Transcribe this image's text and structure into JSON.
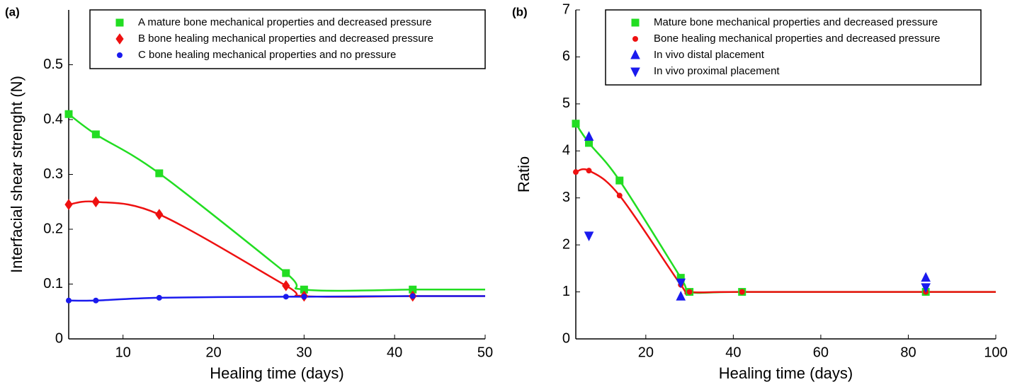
{
  "chart_data": [
    {
      "type": "line",
      "label": "(a)",
      "xlabel": "Healing time (days)",
      "ylabel": "Interfacial shear strenght (N)",
      "xlim": [
        4,
        50
      ],
      "xticks": [
        10,
        20,
        30,
        40,
        50
      ],
      "ylim": [
        0,
        0.6
      ],
      "yticks": [
        0,
        0.1,
        0.2,
        0.3,
        0.4,
        0.5
      ],
      "legend": "upper right",
      "series": [
        {
          "name": "A mature bone mechanical properties and decreased pressure",
          "color": "#22dd22",
          "marker": "square",
          "line": true,
          "x": [
            4,
            7,
            14,
            28,
            30,
            42
          ],
          "values": [
            0.41,
            0.373,
            0.302,
            0.12,
            0.09,
            0.09
          ]
        },
        {
          "name": "B bone healing mechanical properties and decreased pressure",
          "color": "#ee1111",
          "marker": "diamond",
          "line": true,
          "x": [
            4,
            7,
            14,
            28,
            30,
            42
          ],
          "values": [
            0.245,
            0.25,
            0.227,
            0.097,
            0.078,
            0.078
          ]
        },
        {
          "name": "C bone healing mechanical properties and no pressure",
          "color": "#1a1aee",
          "marker": "circle",
          "line": true,
          "x": [
            4,
            7,
            14,
            28,
            30,
            42
          ],
          "values": [
            0.07,
            0.07,
            0.075,
            0.077,
            0.077,
            0.078
          ]
        }
      ]
    },
    {
      "type": "line",
      "label": "(b)",
      "xlabel": "Healing time (days)",
      "ylabel": "Ratio",
      "xlim": [
        4,
        100
      ],
      "xticks": [
        20,
        40,
        60,
        80,
        100
      ],
      "ylim": [
        0,
        7
      ],
      "yticks": [
        0,
        1,
        2,
        3,
        4,
        5,
        6,
        7
      ],
      "legend": "upper left",
      "series": [
        {
          "name": "Mature bone mechanical properties and decreased pressure",
          "color": "#22dd22",
          "marker": "square",
          "line": true,
          "x": [
            4,
            7,
            14,
            28,
            30,
            42,
            84
          ],
          "values": [
            4.58,
            4.17,
            3.37,
            1.3,
            1.0,
            1.0,
            1.0
          ]
        },
        {
          "name": "Bone healing mechanical properties and decreased pressure",
          "color": "#ee1111",
          "marker": "circle",
          "line": true,
          "x": [
            4,
            7,
            14,
            28,
            30,
            42,
            84
          ],
          "values": [
            3.55,
            3.58,
            3.05,
            1.15,
            1.0,
            1.0,
            1.0
          ]
        },
        {
          "name": "In vivo distal placement",
          "color": "#1a1aee",
          "marker": "triangle-up",
          "line": false,
          "x": [
            7,
            28,
            84
          ],
          "values": [
            4.3,
            0.9,
            1.3
          ]
        },
        {
          "name": "In vivo proximal placement",
          "color": "#1a1aee",
          "marker": "triangle-down",
          "line": false,
          "x": [
            7,
            28,
            84
          ],
          "values": [
            2.2,
            1.2,
            1.1
          ]
        }
      ]
    }
  ]
}
